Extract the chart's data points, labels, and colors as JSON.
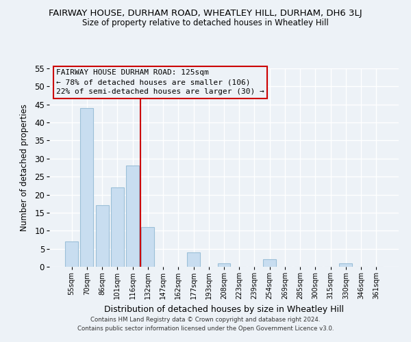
{
  "title": "FAIRWAY HOUSE, DURHAM ROAD, WHEATLEY HILL, DURHAM, DH6 3LJ",
  "subtitle": "Size of property relative to detached houses in Wheatley Hill",
  "xlabel": "Distribution of detached houses by size in Wheatley Hill",
  "ylabel": "Number of detached properties",
  "bar_color": "#c8ddf0",
  "bar_edgecolor": "#9bbfd8",
  "categories": [
    "55sqm",
    "70sqm",
    "86sqm",
    "101sqm",
    "116sqm",
    "132sqm",
    "147sqm",
    "162sqm",
    "177sqm",
    "193sqm",
    "208sqm",
    "223sqm",
    "239sqm",
    "254sqm",
    "269sqm",
    "285sqm",
    "300sqm",
    "315sqm",
    "330sqm",
    "346sqm",
    "361sqm"
  ],
  "values": [
    7,
    44,
    17,
    22,
    28,
    11,
    0,
    0,
    4,
    0,
    1,
    0,
    0,
    2,
    0,
    0,
    0,
    0,
    1,
    0,
    0
  ],
  "ylim": [
    0,
    55
  ],
  "yticks": [
    0,
    5,
    10,
    15,
    20,
    25,
    30,
    35,
    40,
    45,
    50,
    55
  ],
  "vline_pos": 4.5,
  "vline_color": "#cc0000",
  "annotation_title": "FAIRWAY HOUSE DURHAM ROAD: 125sqm",
  "annotation_line2": "← 78% of detached houses are smaller (106)",
  "annotation_line3": "22% of semi-detached houses are larger (30) →",
  "annotation_box_color": "#cc0000",
  "footer_line1": "Contains HM Land Registry data © Crown copyright and database right 2024.",
  "footer_line2": "Contains public sector information licensed under the Open Government Licence v3.0.",
  "bg_color": "#edf2f7",
  "grid_color": "#ffffff"
}
